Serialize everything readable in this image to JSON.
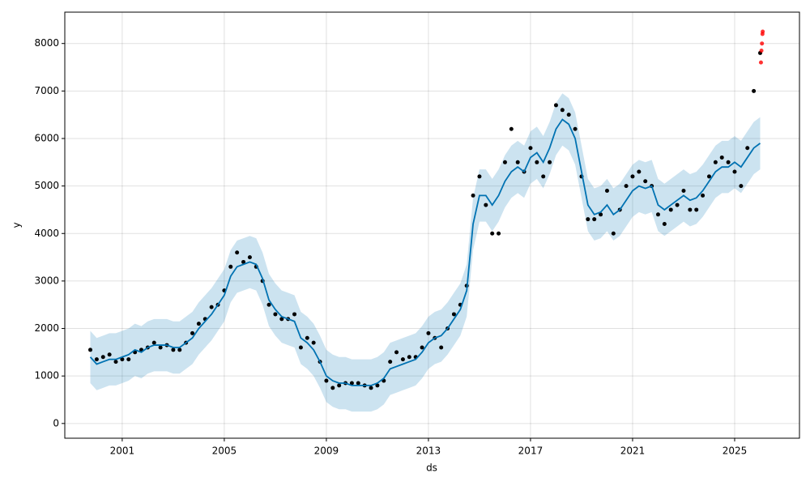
{
  "chart_data": {
    "type": "forecast",
    "xlabel": "ds",
    "ylabel": "y",
    "xlim": [
      1998.75,
      2027.54
    ],
    "ylim": [
      -310,
      8660
    ],
    "xticks": [
      2001,
      2005,
      2009,
      2013,
      2017,
      2021,
      2025
    ],
    "yticks": [
      0,
      1000,
      2000,
      3000,
      4000,
      5000,
      6000,
      7000,
      8000
    ],
    "grid": true,
    "x": [
      1999.75,
      2000,
      2000.25,
      2000.5,
      2000.75,
      2001,
      2001.25,
      2001.5,
      2001.75,
      2002,
      2002.25,
      2002.5,
      2002.75,
      2003,
      2003.25,
      2003.5,
      2003.75,
      2004,
      2004.25,
      2004.5,
      2004.75,
      2005,
      2005.25,
      2005.5,
      2005.75,
      2006,
      2006.25,
      2006.5,
      2006.75,
      2007,
      2007.25,
      2007.5,
      2007.75,
      2008,
      2008.25,
      2008.5,
      2008.75,
      2009,
      2009.25,
      2009.5,
      2009.75,
      2010,
      2010.25,
      2010.5,
      2010.75,
      2011,
      2011.25,
      2011.5,
      2011.75,
      2012,
      2012.25,
      2012.5,
      2012.75,
      2013,
      2013.25,
      2013.5,
      2013.75,
      2014,
      2014.25,
      2014.5,
      2014.75,
      2015,
      2015.25,
      2015.5,
      2015.75,
      2016,
      2016.25,
      2016.5,
      2016.75,
      2017,
      2017.25,
      2017.5,
      2017.75,
      2018,
      2018.25,
      2018.5,
      2018.75,
      2019,
      2019.25,
      2019.5,
      2019.75,
      2020,
      2020.25,
      2020.5,
      2020.75,
      2021,
      2021.25,
      2021.5,
      2021.75,
      2022,
      2022.25,
      2022.5,
      2022.75,
      2023,
      2023.25,
      2023.5,
      2023.75,
      2024,
      2024.25,
      2024.5,
      2024.75,
      2025,
      2025.25,
      2025.5,
      2025.75,
      2026
    ],
    "observed": {
      "color": "#000000",
      "values": [
        1550,
        1350,
        1400,
        1450,
        1300,
        1350,
        1350,
        1500,
        1550,
        1600,
        1700,
        1600,
        1650,
        1550,
        1550,
        1700,
        1900,
        2100,
        2200,
        2450,
        2500,
        2800,
        3300,
        3600,
        3400,
        3500,
        3300,
        3000,
        2500,
        2300,
        2200,
        2200,
        2300,
        1600,
        1800,
        1700,
        1300,
        900,
        750,
        800,
        850,
        850,
        850,
        800,
        750,
        800,
        900,
        1300,
        1500,
        1350,
        1400,
        1400,
        1600,
        1900,
        1800,
        1600,
        2000,
        2300,
        2500,
        2900,
        4800,
        5200,
        4600,
        4000,
        4000,
        5500,
        6200,
        5500,
        5300,
        5800,
        5500,
        5200,
        5500,
        6700,
        6600,
        6500,
        6200,
        5200,
        4300,
        4300,
        4400,
        4900,
        4000,
        4500,
        5000,
        5200,
        5300,
        5100,
        5000,
        4400,
        4200,
        4500,
        4600,
        4900,
        4500,
        4500,
        4800,
        5200,
        5500,
        5600,
        5500,
        5300,
        5000,
        5800,
        7000,
        7800
      ]
    },
    "forecast": {
      "color": "#0072B2",
      "values": [
        1400,
        1250,
        1300,
        1350,
        1350,
        1400,
        1450,
        1550,
        1500,
        1600,
        1650,
        1650,
        1650,
        1600,
        1600,
        1700,
        1800,
        2000,
        2150,
        2300,
        2500,
        2700,
        3100,
        3300,
        3350,
        3400,
        3350,
        3050,
        2600,
        2400,
        2250,
        2200,
        2150,
        1800,
        1700,
        1550,
        1300,
        1000,
        900,
        850,
        850,
        800,
        800,
        800,
        800,
        850,
        950,
        1150,
        1200,
        1250,
        1300,
        1350,
        1500,
        1700,
        1800,
        1850,
        2000,
        2200,
        2400,
        2800,
        4200,
        4800,
        4800,
        4600,
        4800,
        5100,
        5300,
        5400,
        5300,
        5600,
        5700,
        5500,
        5800,
        6200,
        6400,
        6300,
        6000,
        5300,
        4600,
        4400,
        4450,
        4600,
        4400,
        4500,
        4700,
        4900,
        5000,
        4950,
        5000,
        4600,
        4500,
        4600,
        4700,
        4800,
        4700,
        4750,
        4900,
        5100,
        5300,
        5400,
        5400,
        5500,
        5400,
        5600,
        5800,
        5900
      ]
    },
    "band": {
      "color": "#0072B2",
      "lower": [
        850,
        700,
        750,
        800,
        800,
        850,
        900,
        1000,
        950,
        1050,
        1100,
        1100,
        1100,
        1050,
        1050,
        1150,
        1250,
        1450,
        1600,
        1750,
        1950,
        2150,
        2550,
        2750,
        2800,
        2850,
        2800,
        2500,
        2050,
        1850,
        1700,
        1650,
        1600,
        1250,
        1150,
        1000,
        750,
        450,
        350,
        300,
        300,
        250,
        250,
        250,
        250,
        300,
        400,
        600,
        650,
        700,
        750,
        800,
        950,
        1150,
        1250,
        1300,
        1450,
        1650,
        1850,
        2250,
        3650,
        4250,
        4250,
        4050,
        4250,
        4550,
        4750,
        4850,
        4750,
        5050,
        5150,
        4950,
        5250,
        5650,
        5850,
        5750,
        5450,
        4750,
        4050,
        3850,
        3900,
        4050,
        3850,
        3950,
        4150,
        4350,
        4450,
        4400,
        4450,
        4050,
        3950,
        4050,
        4150,
        4250,
        4150,
        4200,
        4350,
        4550,
        4750,
        4850,
        4850,
        4950,
        4850,
        5050,
        5250,
        5350
      ],
      "upper": [
        1950,
        1800,
        1850,
        1900,
        1900,
        1950,
        2000,
        2100,
        2050,
        2150,
        2200,
        2200,
        2200,
        2150,
        2150,
        2250,
        2350,
        2550,
        2700,
        2850,
        3050,
        3250,
        3650,
        3850,
        3900,
        3950,
        3900,
        3600,
        3150,
        2950,
        2800,
        2750,
        2700,
        2350,
        2250,
        2100,
        1850,
        1550,
        1450,
        1400,
        1400,
        1350,
        1350,
        1350,
        1350,
        1400,
        1500,
        1700,
        1750,
        1800,
        1850,
        1900,
        2050,
        2250,
        2350,
        2400,
        2550,
        2750,
        2950,
        3350,
        4750,
        5350,
        5350,
        5150,
        5350,
        5650,
        5850,
        5950,
        5850,
        6150,
        6250,
        6050,
        6350,
        6750,
        6950,
        6850,
        6550,
        5850,
        5150,
        4950,
        5000,
        5150,
        4950,
        5050,
        5250,
        5450,
        5550,
        5500,
        5550,
        5150,
        5050,
        5150,
        5250,
        5350,
        5250,
        5300,
        5450,
        5650,
        5850,
        5950,
        5950,
        6050,
        5950,
        6150,
        6350,
        6450
      ]
    },
    "recent": {
      "color": "#ff0000",
      "x": [
        2026.03,
        2026.05,
        2026.07,
        2026.09,
        2026.1
      ],
      "values": [
        7600,
        7850,
        8000,
        8200,
        8250
      ]
    }
  }
}
